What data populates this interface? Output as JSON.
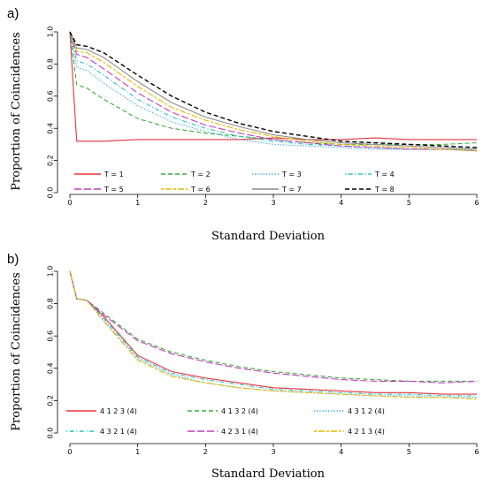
{
  "chart_data": [
    {
      "type": "line",
      "panel_label": "a)",
      "xlabel": "Standard Deviation",
      "ylabel": "Proportion of Coincidences",
      "xlim": [
        0,
        6
      ],
      "ylim": [
        0,
        1
      ],
      "xticks": [
        "0",
        "1",
        "2",
        "3",
        "4",
        "5",
        "6"
      ],
      "yticks": [
        "0.0",
        "0.2",
        "0.4",
        "0.6",
        "0.8",
        "1.0"
      ],
      "legend_position": "bottom-inside",
      "series": [
        {
          "name": "T = 1",
          "color": "#e8343c",
          "dash": "solid",
          "x": [
            0,
            0.1,
            0.25,
            0.5,
            1,
            1.5,
            2,
            2.5,
            3,
            3.5,
            4,
            4.5,
            5,
            5.5,
            6
          ],
          "y": [
            1.0,
            0.32,
            0.32,
            0.32,
            0.33,
            0.33,
            0.33,
            0.33,
            0.34,
            0.33,
            0.33,
            0.34,
            0.33,
            0.33,
            0.33
          ]
        },
        {
          "name": "T = 2",
          "color": "#3aae3a",
          "dash": "dashed",
          "x": [
            0,
            0.1,
            0.25,
            0.5,
            1,
            1.5,
            2,
            2.5,
            3,
            3.5,
            4,
            4.5,
            5,
            5.5,
            6
          ],
          "y": [
            1.0,
            0.67,
            0.65,
            0.58,
            0.46,
            0.4,
            0.37,
            0.35,
            0.33,
            0.31,
            0.3,
            0.3,
            0.3,
            0.3,
            0.31
          ]
        },
        {
          "name": "T = 3",
          "color": "#2b9fd6",
          "dash": "dotted",
          "x": [
            0,
            0.1,
            0.25,
            0.5,
            1,
            1.5,
            2,
            2.5,
            3,
            3.5,
            4,
            4.5,
            5,
            5.5,
            6
          ],
          "y": [
            1.0,
            0.78,
            0.76,
            0.68,
            0.54,
            0.44,
            0.38,
            0.33,
            0.3,
            0.29,
            0.28,
            0.27,
            0.27,
            0.27,
            0.27
          ]
        },
        {
          "name": "T = 4",
          "color": "#2cc4c4",
          "dash": "dotdash",
          "x": [
            0,
            0.1,
            0.25,
            0.5,
            1,
            1.5,
            2,
            2.5,
            3,
            3.5,
            4,
            4.5,
            5,
            5.5,
            6
          ],
          "y": [
            1.0,
            0.82,
            0.8,
            0.73,
            0.58,
            0.47,
            0.4,
            0.35,
            0.32,
            0.3,
            0.29,
            0.28,
            0.27,
            0.27,
            0.26
          ]
        },
        {
          "name": "T = 5",
          "color": "#c43bc4",
          "dash": "longdash",
          "x": [
            0,
            0.1,
            0.25,
            0.5,
            1,
            1.5,
            2,
            2.5,
            3,
            3.5,
            4,
            4.5,
            5,
            5.5,
            6
          ],
          "y": [
            1.0,
            0.86,
            0.84,
            0.77,
            0.62,
            0.5,
            0.42,
            0.37,
            0.33,
            0.31,
            0.29,
            0.28,
            0.27,
            0.27,
            0.26
          ]
        },
        {
          "name": "T = 6",
          "color": "#e6b800",
          "dash": "twodash",
          "x": [
            0,
            0.1,
            0.25,
            0.5,
            1,
            1.5,
            2,
            2.5,
            3,
            3.5,
            4,
            4.5,
            5,
            5.5,
            6
          ],
          "y": [
            1.0,
            0.88,
            0.87,
            0.81,
            0.66,
            0.53,
            0.45,
            0.39,
            0.35,
            0.32,
            0.3,
            0.29,
            0.28,
            0.27,
            0.26
          ]
        },
        {
          "name": "T = 7",
          "color": "#8c8c8c",
          "dash": "solid",
          "x": [
            0,
            0.1,
            0.25,
            0.5,
            1,
            1.5,
            2,
            2.5,
            3,
            3.5,
            4,
            4.5,
            5,
            5.5,
            6
          ],
          "y": [
            1.0,
            0.9,
            0.89,
            0.84,
            0.69,
            0.56,
            0.47,
            0.41,
            0.36,
            0.33,
            0.31,
            0.3,
            0.29,
            0.28,
            0.27
          ]
        },
        {
          "name": "T = 8",
          "color": "#000000",
          "dash": "dashed",
          "x": [
            0,
            0.1,
            0.25,
            0.5,
            1,
            1.5,
            2,
            2.5,
            3,
            3.5,
            4,
            4.5,
            5,
            5.5,
            6
          ],
          "y": [
            1.0,
            0.92,
            0.91,
            0.87,
            0.73,
            0.6,
            0.5,
            0.43,
            0.38,
            0.35,
            0.32,
            0.31,
            0.3,
            0.29,
            0.28
          ]
        }
      ]
    },
    {
      "type": "line",
      "panel_label": "b)",
      "xlabel": "Standard Deviation",
      "ylabel": "Proportion of Coincidences",
      "xlim": [
        0,
        6
      ],
      "ylim": [
        0,
        1
      ],
      "xticks": [
        "0",
        "1",
        "2",
        "3",
        "4",
        "5",
        "6"
      ],
      "yticks": [
        "0.0",
        "0.2",
        "0.4",
        "0.6",
        "0.8",
        "1.0"
      ],
      "legend_position": "bottom-inside",
      "series": [
        {
          "name": "4 1 2 3 (4)",
          "color": "#e8343c",
          "dash": "solid",
          "x": [
            0,
            0.1,
            0.25,
            0.5,
            1,
            1.5,
            2,
            2.5,
            3,
            3.5,
            4,
            4.5,
            5,
            5.5,
            6
          ],
          "y": [
            1.0,
            0.83,
            0.82,
            0.72,
            0.48,
            0.38,
            0.34,
            0.31,
            0.28,
            0.27,
            0.26,
            0.25,
            0.25,
            0.24,
            0.24
          ]
        },
        {
          "name": "4 1 3 2 (4)",
          "color": "#3aae3a",
          "dash": "dashed",
          "x": [
            0,
            0.1,
            0.25,
            0.5,
            1,
            1.5,
            2,
            2.5,
            3,
            3.5,
            4,
            4.5,
            5,
            5.5,
            6
          ],
          "y": [
            1.0,
            0.83,
            0.82,
            0.74,
            0.58,
            0.5,
            0.45,
            0.41,
            0.38,
            0.36,
            0.34,
            0.33,
            0.32,
            0.32,
            0.32
          ]
        },
        {
          "name": "4 3 1 2 (4)",
          "color": "#2b9fd6",
          "dash": "dotted",
          "x": [
            0,
            0.1,
            0.25,
            0.5,
            1,
            1.5,
            2,
            2.5,
            3,
            3.5,
            4,
            4.5,
            5,
            5.5,
            6
          ],
          "y": [
            1.0,
            0.83,
            0.82,
            0.7,
            0.46,
            0.36,
            0.31,
            0.28,
            0.26,
            0.25,
            0.24,
            0.23,
            0.23,
            0.22,
            0.22
          ]
        },
        {
          "name": "4 3 2 1 (4)",
          "color": "#2cc4c4",
          "dash": "dotdash",
          "x": [
            0,
            0.1,
            0.25,
            0.5,
            1,
            1.5,
            2,
            2.5,
            3,
            3.5,
            4,
            4.5,
            5,
            5.5,
            6
          ],
          "y": [
            1.0,
            0.83,
            0.82,
            0.71,
            0.47,
            0.37,
            0.33,
            0.3,
            0.27,
            0.26,
            0.25,
            0.24,
            0.24,
            0.23,
            0.23
          ]
        },
        {
          "name": "4 2 3 1 (4)",
          "color": "#c43bc4",
          "dash": "longdash",
          "x": [
            0,
            0.1,
            0.25,
            0.5,
            1,
            1.5,
            2,
            2.5,
            3,
            3.5,
            4,
            4.5,
            5,
            5.5,
            6
          ],
          "y": [
            1.0,
            0.83,
            0.82,
            0.73,
            0.57,
            0.49,
            0.44,
            0.4,
            0.37,
            0.35,
            0.33,
            0.32,
            0.32,
            0.31,
            0.32
          ]
        },
        {
          "name": "4 2 1 3 (4)",
          "color": "#e6b800",
          "dash": "twodash",
          "x": [
            0,
            0.1,
            0.25,
            0.5,
            1,
            1.5,
            2,
            2.5,
            3,
            3.5,
            4,
            4.5,
            5,
            5.5,
            6
          ],
          "y": [
            1.0,
            0.83,
            0.82,
            0.69,
            0.45,
            0.35,
            0.31,
            0.28,
            0.26,
            0.25,
            0.24,
            0.23,
            0.22,
            0.22,
            0.21
          ]
        }
      ]
    }
  ]
}
